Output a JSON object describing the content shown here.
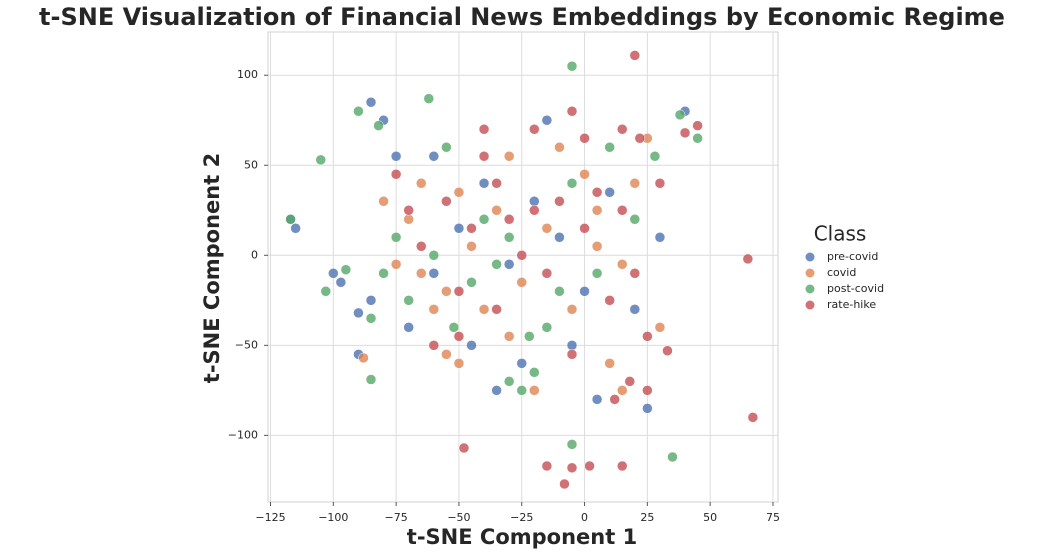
{
  "chart_data": {
    "type": "scatter",
    "title": "t-SNE Visualization of Financial News Embeddings by Economic Regime",
    "xlabel": "t-SNE Component 1",
    "ylabel": "t-SNE Component 2",
    "legend_title": "Class",
    "legend_position": "right",
    "grid": true,
    "xlim": [
      -126,
      77
    ],
    "ylim": [
      -137,
      124
    ],
    "xticks": [
      {
        "value": -125,
        "label": "−125"
      },
      {
        "value": -100,
        "label": "−100"
      },
      {
        "value": -75,
        "label": "−75"
      },
      {
        "value": -50,
        "label": "−50"
      },
      {
        "value": -25,
        "label": "−25"
      },
      0,
      25,
      50,
      75
    ],
    "yticks": [
      {
        "value": -100,
        "label": "−100"
      },
      {
        "value": -50,
        "label": "−50"
      },
      0,
      50,
      100
    ],
    "series": [
      {
        "name": "pre-covid",
        "color": "#4c72b0",
        "x": [
          -85,
          -80,
          -75,
          -117,
          -115,
          -100,
          -97,
          -90,
          -85,
          -70,
          -60,
          -50,
          -40,
          -30,
          -20,
          -10,
          0,
          10,
          20,
          25,
          40,
          -35,
          -25,
          -5,
          -60,
          -90,
          5,
          -45,
          30,
          -15
        ],
        "y": [
          85,
          75,
          55,
          20,
          15,
          -10,
          -15,
          -32,
          -25,
          -40,
          -10,
          15,
          40,
          -5,
          30,
          10,
          -20,
          35,
          -30,
          -85,
          80,
          -75,
          -60,
          -50,
          55,
          -55,
          -80,
          -50,
          10,
          75
        ]
      },
      {
        "name": "covid",
        "color": "#dd8452",
        "x": [
          -80,
          -70,
          -65,
          -55,
          -50,
          -45,
          -35,
          -25,
          -15,
          -5,
          5,
          15,
          20,
          -30,
          -20,
          10,
          -40,
          -60,
          -88,
          0,
          -10,
          25,
          -75,
          -55,
          30,
          -30,
          15,
          -50,
          -65,
          5
        ],
        "y": [
          30,
          20,
          -10,
          -55,
          35,
          5,
          25,
          -15,
          15,
          -30,
          25,
          -5,
          40,
          -45,
          -75,
          -60,
          -30,
          -30,
          -57,
          45,
          60,
          65,
          -5,
          -20,
          -40,
          55,
          -75,
          -60,
          40,
          5
        ]
      },
      {
        "name": "post-covid",
        "color": "#55a868",
        "x": [
          -90,
          -82,
          -62,
          -105,
          -117,
          -103,
          -95,
          -85,
          -85,
          -75,
          -70,
          -60,
          -52,
          -45,
          -40,
          -35,
          -30,
          -25,
          -20,
          -15,
          -22,
          -10,
          -5,
          -5,
          5,
          10,
          20,
          28,
          38,
          35,
          -5,
          -55,
          -30,
          -80,
          45
        ],
        "y": [
          80,
          72,
          87,
          53,
          20,
          -20,
          -8,
          -35,
          -69,
          10,
          -25,
          0,
          -40,
          -15,
          20,
          -5,
          -70,
          -75,
          -65,
          -40,
          -45,
          -20,
          40,
          105,
          -10,
          60,
          20,
          55,
          78,
          -112,
          -105,
          60,
          10,
          -10,
          65
        ]
      },
      {
        "name": "rate-hike",
        "color": "#c44e52",
        "x": [
          -75,
          -70,
          -65,
          -55,
          -50,
          -45,
          -40,
          -35,
          -30,
          -25,
          -20,
          -15,
          -10,
          -5,
          0,
          5,
          10,
          15,
          20,
          25,
          30,
          15,
          22,
          45,
          40,
          18,
          25,
          12,
          -50,
          -60,
          -35,
          -20,
          0,
          -5,
          -40,
          20,
          65,
          67,
          -48,
          -15,
          -5,
          2,
          15,
          -8,
          33
        ],
        "y": [
          45,
          25,
          5,
          30,
          -20,
          15,
          70,
          40,
          20,
          0,
          25,
          -10,
          30,
          -55,
          15,
          35,
          -25,
          25,
          -10,
          -45,
          40,
          70,
          65,
          72,
          68,
          -70,
          -75,
          -80,
          -45,
          -50,
          -30,
          70,
          65,
          80,
          55,
          111,
          -2,
          -90,
          -107,
          -117,
          -118,
          -117,
          -117,
          -127,
          -53
        ]
      }
    ]
  }
}
